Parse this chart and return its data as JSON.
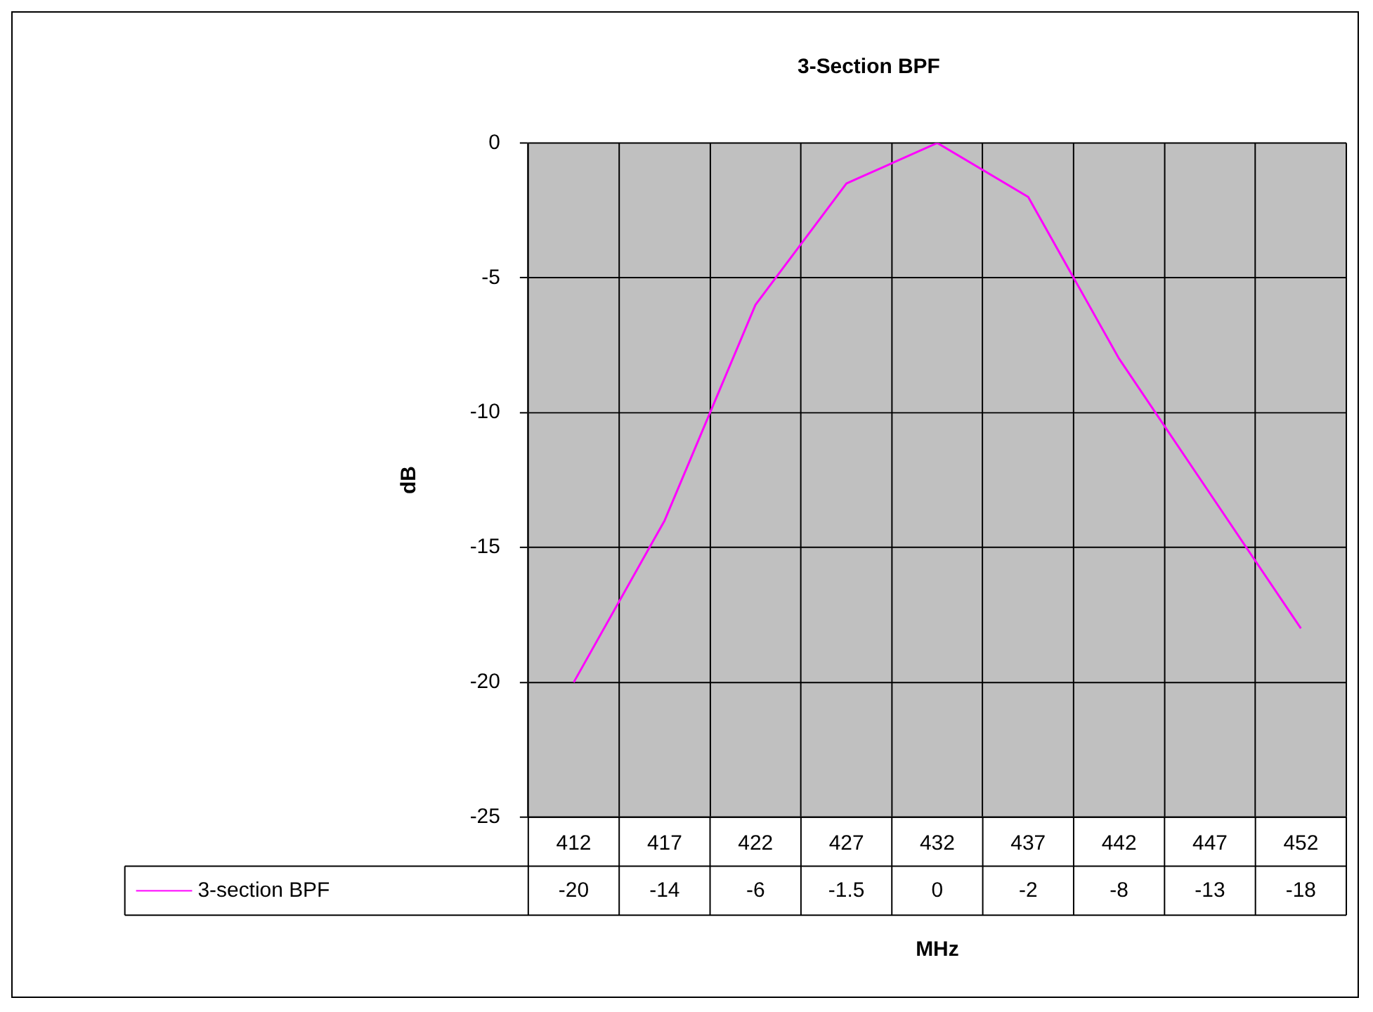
{
  "chart_data": {
    "type": "line",
    "title": "3-Section BPF",
    "xlabel": "MHz",
    "ylabel": "dB",
    "categories": [
      "412",
      "417",
      "422",
      "427",
      "432",
      "437",
      "442",
      "447",
      "452"
    ],
    "series": [
      {
        "name": "3-section BPF",
        "color": "#ff00ff",
        "values": [
          -20,
          -14,
          -6,
          -1.5,
          0,
          -2,
          -8,
          -13,
          -18
        ]
      }
    ],
    "ylim": [
      -25,
      0
    ],
    "yticks": [
      -25,
      -20,
      -15,
      -10,
      -5,
      0
    ],
    "grid": true,
    "legend": "bottom",
    "marker": "none",
    "line_style": "solid",
    "data_labels": true
  }
}
